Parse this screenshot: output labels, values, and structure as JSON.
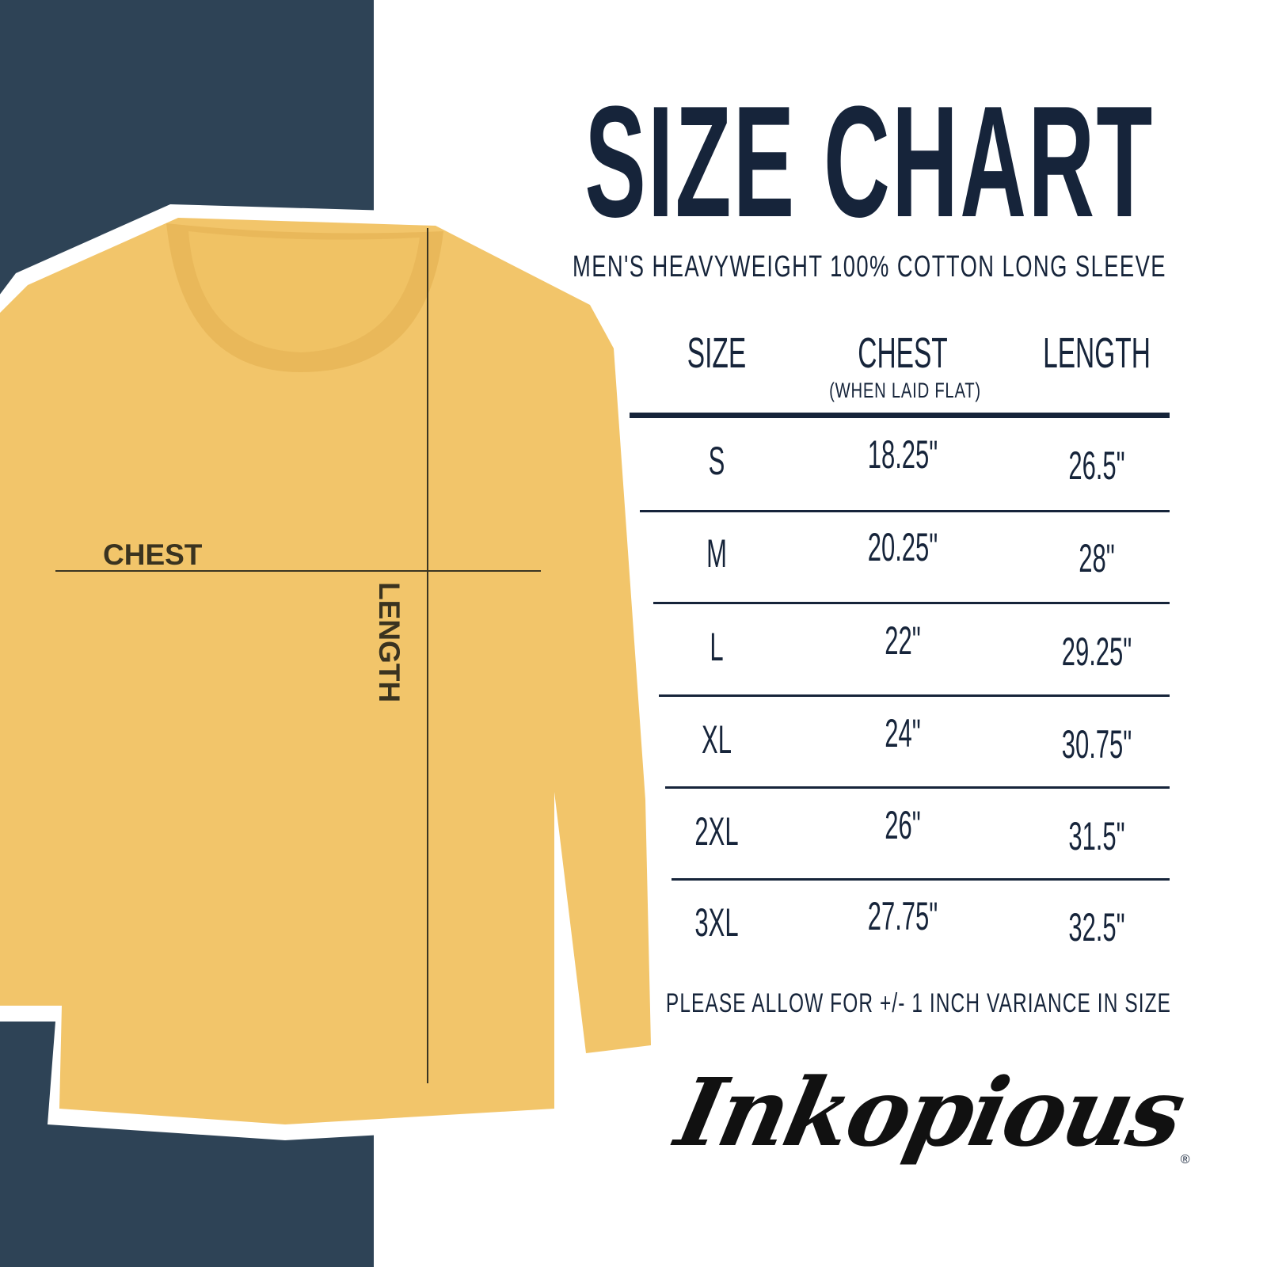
{
  "title": "SIZE CHART",
  "subtitle": "MEN'S HEAVYWEIGHT 100% COTTON LONG SLEEVE",
  "shirt_labels": {
    "chest": "CHEST",
    "length": "LENGTH"
  },
  "colors": {
    "panel": "#2e4356",
    "text": "#16243a",
    "shirt": "#f2c56a"
  },
  "chart_data": {
    "type": "table",
    "columns": [
      {
        "label": "SIZE",
        "note": ""
      },
      {
        "label": "CHEST",
        "note": "(WHEN LAID FLAT)"
      },
      {
        "label": "LENGTH",
        "note": ""
      }
    ],
    "rows": [
      [
        "S",
        "18.25\"",
        "26.5\""
      ],
      [
        "M",
        "20.25\"",
        "28\""
      ],
      [
        "L",
        "22\"",
        "29.25\""
      ],
      [
        "XL",
        "24\"",
        "30.75\""
      ],
      [
        "2XL",
        "26\"",
        "31.5\""
      ],
      [
        "3XL",
        "27.75\"",
        "32.5\""
      ]
    ]
  },
  "footer_note": "PLEASE ALLOW FOR +/- 1 INCH VARIANCE IN SIZE",
  "brand": {
    "logo_text": "Inkopious",
    "mark": "®"
  }
}
